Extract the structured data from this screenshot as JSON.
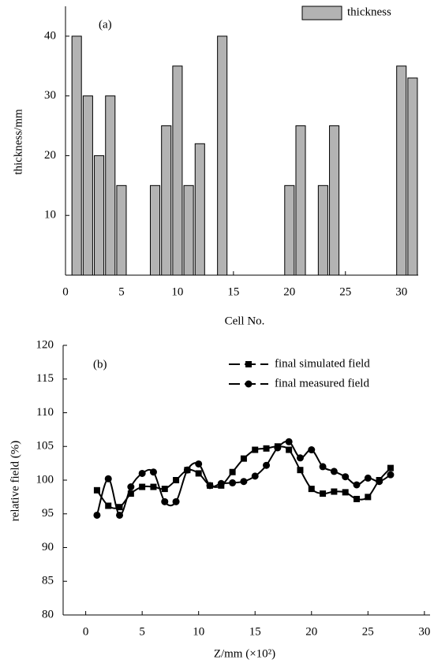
{
  "chart_data": [
    {
      "type": "bar",
      "annotation": "(a)",
      "x_label": "Cell No.",
      "y_label": "thickness/mm",
      "x": [
        1,
        2,
        3,
        4,
        5,
        8,
        9,
        10,
        11,
        12,
        14,
        20,
        21,
        23,
        24,
        30,
        31
      ],
      "series": [
        {
          "name": "thickness",
          "color": "#b3b3b3",
          "values": [
            40,
            30,
            20,
            30,
            15,
            15,
            25,
            35,
            15,
            22,
            40,
            15,
            25,
            15,
            25,
            35,
            33
          ]
        }
      ],
      "xlim": [
        0,
        31.5
      ],
      "xticks": [
        0,
        5,
        10,
        15,
        20,
        25,
        30
      ],
      "ylim": [
        0,
        45
      ],
      "yticks": [
        10,
        20,
        30,
        40
      ],
      "legend": "upper right"
    },
    {
      "type": "line",
      "annotation": "(b)",
      "x_label": "Z/mm  (×10²)",
      "y_label": "relative field (%)",
      "x": [
        1,
        2,
        3,
        4,
        5,
        6,
        7,
        8,
        9,
        10,
        11,
        12,
        13,
        14,
        15,
        16,
        17,
        18,
        19,
        20,
        21,
        22,
        23,
        24,
        25,
        26,
        27
      ],
      "series": [
        {
          "name": "final simulated field",
          "color": "#000000",
          "marker": "square",
          "values": [
            98.5,
            96.2,
            96,
            98,
            99,
            99,
            98.7,
            100,
            101.5,
            101,
            99.2,
            99.2,
            101.2,
            103.2,
            104.5,
            104.7,
            105,
            104.5,
            101.5,
            98.7,
            98,
            98.3,
            98.2,
            97.2,
            97.5,
            100,
            101.8
          ]
        },
        {
          "name": "final measured field",
          "color": "#000000",
          "marker": "circle",
          "values": [
            94.8,
            100.2,
            94.8,
            99,
            101,
            101.2,
            96.8,
            96.8,
            101.5,
            102.4,
            99.2,
            99.5,
            99.6,
            99.8,
            100.6,
            102.2,
            104.8,
            105.7,
            103.3,
            104.5,
            102,
            101.3,
            100.5,
            99.3,
            100.3,
            99.8,
            100.8
          ]
        }
      ],
      "xlim": [
        -2,
        30.5
      ],
      "xticks": [
        0,
        5,
        10,
        15,
        20,
        25,
        30
      ],
      "ylim": [
        80,
        120
      ],
      "yticks": [
        80,
        85,
        90,
        95,
        100,
        105,
        110,
        115,
        120
      ],
      "legend": "upper center"
    }
  ]
}
